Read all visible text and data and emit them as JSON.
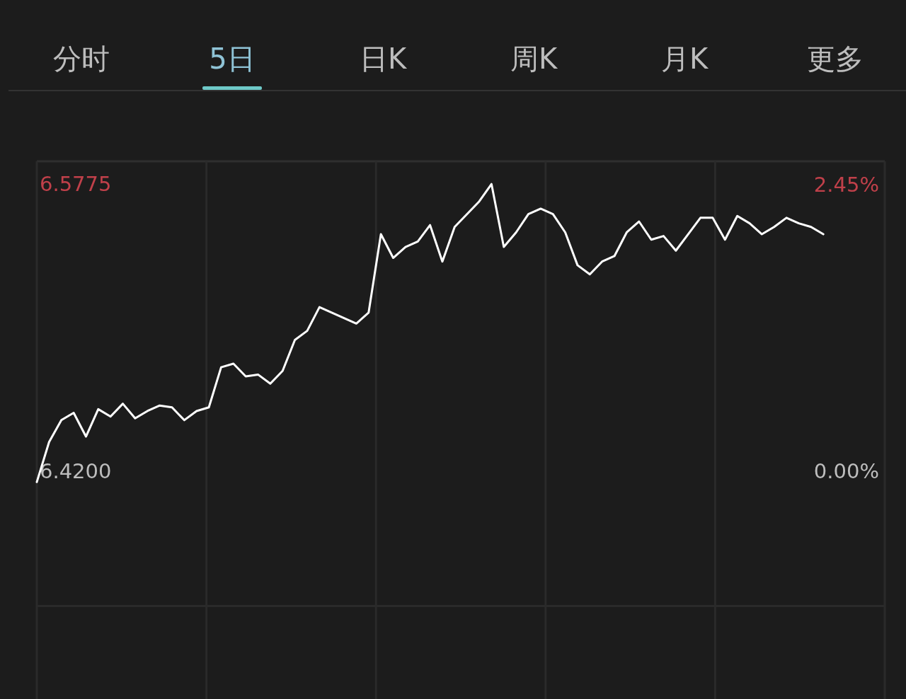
{
  "chart_data": {
    "type": "line",
    "annotations": [
      "分时",
      "5日",
      "日K",
      "周K",
      "月K",
      "更多"
    ],
    "categories": [
      null,
      null,
      null,
      null,
      null,
      null,
      null,
      null,
      null,
      null,
      null,
      null,
      null,
      null,
      null,
      null,
      null,
      null,
      null,
      null,
      null,
      null,
      null,
      null,
      null,
      null,
      null,
      null,
      null,
      null,
      null,
      null,
      null,
      null,
      null,
      null,
      null,
      null,
      null,
      null,
      null,
      null,
      null,
      null,
      null,
      null,
      null,
      null,
      null,
      null,
      null,
      null,
      null,
      null,
      null,
      null,
      null,
      null,
      null,
      null,
      null,
      null,
      null,
      null,
      null,
      null,
      null,
      null,
      null,
      null
    ],
    "ylim": [
      6.295,
      6.59
    ],
    "yticks": [
      {
        "value": 6.346,
        "label": null
      },
      {
        "value": 6.42,
        "label": "6.4200"
      },
      {
        "value": 6.5775,
        "label": "6.5775"
      }
    ],
    "y2lim": [
      -1.95,
      2.65
    ],
    "y2ticks": [
      {
        "value": 0,
        "label": "0.00%"
      },
      {
        "value": 2.45,
        "label": "2.45%"
      }
    ],
    "grid": true,
    "series": [
      {
        "color": "#ffffff",
        "values": [
          6.414,
          6.436,
          6.448,
          6.452,
          6.439,
          6.454,
          6.45,
          6.457,
          6.449,
          6.453,
          6.456,
          6.455,
          6.448,
          6.453,
          6.455,
          6.477,
          6.479,
          6.472,
          6.473,
          6.468,
          6.475,
          6.492,
          6.497,
          6.51,
          6.507,
          6.504,
          6.501,
          6.507,
          6.55,
          6.537,
          6.543,
          6.546,
          6.555,
          6.535,
          6.554,
          6.561,
          6.568,
          6.5775,
          6.543,
          6.551,
          6.561,
          6.564,
          6.561,
          6.551,
          6.533,
          6.528,
          6.535,
          6.538,
          6.551,
          6.557,
          6.547,
          6.549,
          6.541,
          6.55,
          6.559,
          6.559,
          6.547,
          6.56,
          6.556,
          6.55,
          6.554,
          6.559,
          6.556,
          6.554,
          6.55,
          null,
          null,
          null,
          null,
          null
        ]
      }
    ]
  }
}
